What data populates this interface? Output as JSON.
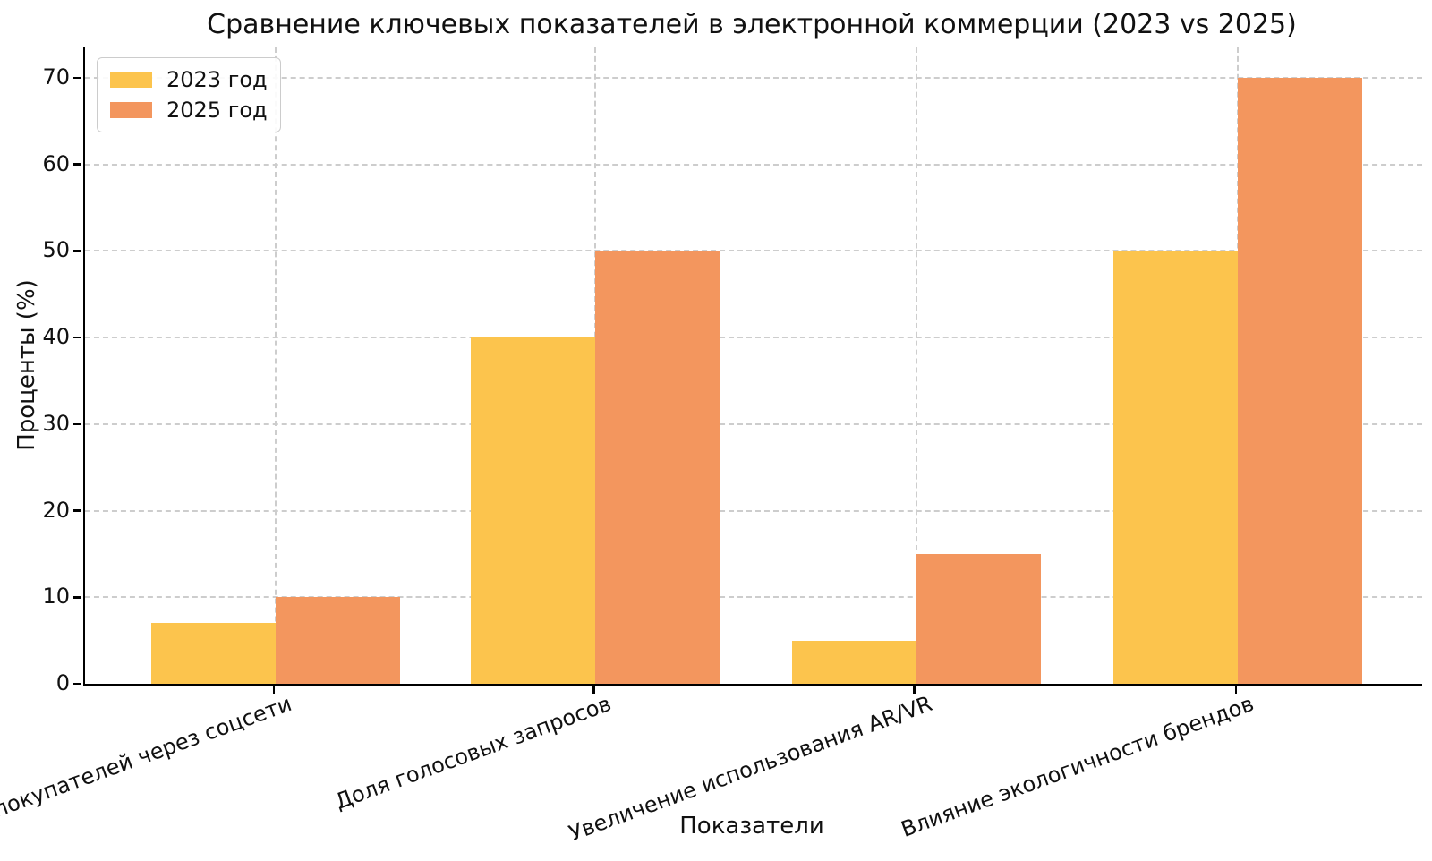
{
  "chart_data": {
    "type": "bar",
    "title": "Сравнение ключевых показателей в электронной коммерции (2023 vs 2025)",
    "xlabel": "Показатели",
    "ylabel": "Проценты (%)",
    "categories": [
      "Процент покупателей через соцсети",
      "Доля голосовых запросов",
      "Увеличение использования AR/VR",
      "Влияние экологичности брендов"
    ],
    "series": [
      {
        "name": "2023 год",
        "color": "#FCC44D",
        "values": [
          7,
          40,
          5,
          50
        ]
      },
      {
        "name": "2025 год",
        "color": "#F3965E",
        "values": [
          10,
          50,
          15,
          70
        ]
      }
    ],
    "yticks": [
      0,
      10,
      20,
      30,
      40,
      50,
      60,
      70
    ],
    "ylim": [
      0,
      73.5
    ],
    "grid": true,
    "grid_style": "dashed",
    "grid_color": "#cdcdcd",
    "legend_position": "upper left",
    "xtick_rotation_deg": 20
  }
}
